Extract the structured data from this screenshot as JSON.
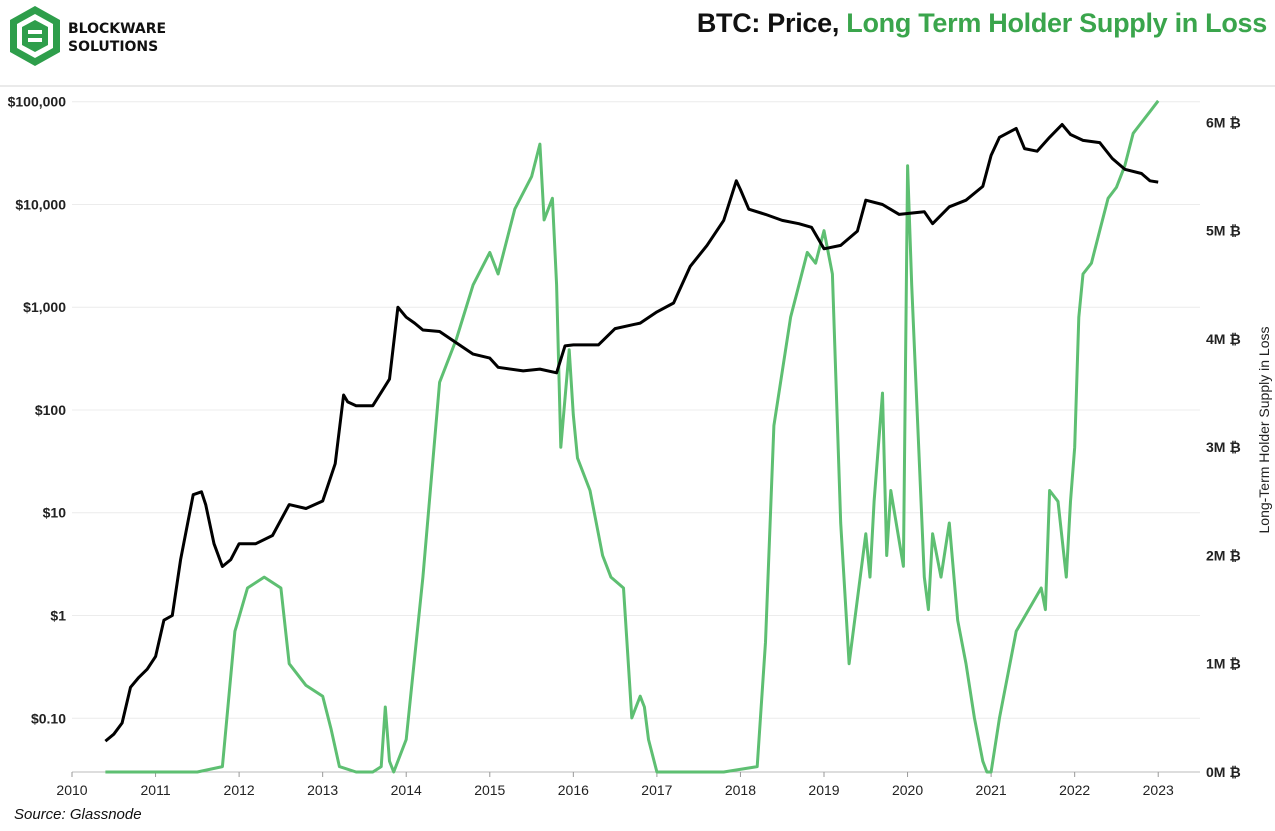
{
  "brand": {
    "line1": "BLOCKWARE",
    "line2": "SOLUTIONS",
    "color": "#2e9e4b"
  },
  "title": {
    "part1": "BTC: Price, ",
    "part2": "Long Term Holder Supply in Loss"
  },
  "source": "Source: Glassnode",
  "chart_data": {
    "type": "line",
    "x_axis": {
      "ticks": [
        "2010",
        "2011",
        "2012",
        "2013",
        "2014",
        "2015",
        "2016",
        "2017",
        "2018",
        "2019",
        "2020",
        "2021",
        "2022",
        "2023"
      ],
      "range": [
        2010.0,
        2023.5
      ]
    },
    "y_left": {
      "scale": "log",
      "range": [
        0.03,
        130000
      ],
      "ticks": [
        {
          "value": 0.1,
          "label": "$0.10"
        },
        {
          "value": 1,
          "label": "$1"
        },
        {
          "value": 10,
          "label": "$10"
        },
        {
          "value": 100,
          "label": "$100"
        },
        {
          "value": 1000,
          "label": "$1,000"
        },
        {
          "value": 10000,
          "label": "$10,000"
        },
        {
          "value": 100000,
          "label": "$100,000"
        }
      ]
    },
    "y_right": {
      "label": "Long-Term Holder Supply in Loss",
      "range": [
        0,
        6.3
      ],
      "unit": "M",
      "ticks": [
        {
          "value": 0,
          "label": "0M ₿"
        },
        {
          "value": 1,
          "label": "1M ₿"
        },
        {
          "value": 2,
          "label": "2M ₿"
        },
        {
          "value": 3,
          "label": "3M ₿"
        },
        {
          "value": 4,
          "label": "4M ₿"
        },
        {
          "value": 5,
          "label": "5M ₿"
        },
        {
          "value": 6,
          "label": "6M ₿"
        }
      ]
    },
    "series": [
      {
        "name": "Price",
        "axis": "left",
        "color": "#000000",
        "x": [
          2010.4,
          2010.5,
          2010.6,
          2010.7,
          2010.8,
          2010.9,
          2011.0,
          2011.1,
          2011.2,
          2011.3,
          2011.45,
          2011.55,
          2011.6,
          2011.7,
          2011.8,
          2011.9,
          2012.0,
          2012.2,
          2012.4,
          2012.6,
          2012.8,
          2013.0,
          2013.15,
          2013.25,
          2013.3,
          2013.4,
          2013.6,
          2013.8,
          2013.9,
          2014.0,
          2014.1,
          2014.2,
          2014.4,
          2014.6,
          2014.8,
          2015.0,
          2015.1,
          2015.4,
          2015.6,
          2015.8,
          2015.9,
          2016.0,
          2016.3,
          2016.5,
          2016.8,
          2017.0,
          2017.2,
          2017.4,
          2017.6,
          2017.8,
          2017.95,
          2018.0,
          2018.1,
          2018.3,
          2018.5,
          2018.7,
          2018.85,
          2019.0,
          2019.2,
          2019.4,
          2019.5,
          2019.7,
          2019.9,
          2020.2,
          2020.3,
          2020.5,
          2020.7,
          2020.9,
          2021.0,
          2021.1,
          2021.3,
          2021.4,
          2021.55,
          2021.7,
          2021.85,
          2021.95,
          2022.1,
          2022.3,
          2022.45,
          2022.6,
          2022.8,
          2022.9,
          2023.0
        ],
        "y": [
          0.06,
          0.07,
          0.09,
          0.2,
          0.25,
          0.3,
          0.4,
          0.9,
          1,
          3.5,
          15,
          16,
          12,
          5,
          3,
          3.5,
          5,
          5,
          6,
          12,
          11,
          13,
          30,
          140,
          120,
          110,
          110,
          200,
          1000,
          800,
          700,
          600,
          580,
          450,
          350,
          320,
          260,
          240,
          250,
          230,
          420,
          430,
          430,
          620,
          700,
          900,
          1100,
          2500,
          4000,
          7000,
          17000,
          14000,
          9000,
          8000,
          7000,
          6500,
          6000,
          3700,
          4000,
          5500,
          11000,
          10000,
          8000,
          8500,
          6500,
          9500,
          11000,
          15000,
          30000,
          45000,
          55000,
          35000,
          33000,
          45000,
          60000,
          48000,
          42000,
          40000,
          28000,
          22000,
          20000,
          17000,
          16500
        ]
      },
      {
        "name": "Long Term Holder Supply in Loss",
        "axis": "right",
        "color": "#5ebf72",
        "x": [
          2010.4,
          2011.5,
          2011.8,
          2011.95,
          2012.1,
          2012.3,
          2012.5,
          2012.6,
          2012.8,
          2013.0,
          2013.1,
          2013.2,
          2013.4,
          2013.6,
          2013.7,
          2013.75,
          2013.8,
          2013.85,
          2014.0,
          2014.2,
          2014.4,
          2014.6,
          2014.8,
          2015.0,
          2015.1,
          2015.3,
          2015.5,
          2015.6,
          2015.65,
          2015.75,
          2015.8,
          2015.85,
          2015.95,
          2016.0,
          2016.05,
          2016.2,
          2016.35,
          2016.45,
          2016.6,
          2016.7,
          2016.8,
          2016.85,
          2016.9,
          2017.0,
          2017.2,
          2017.8,
          2018.2,
          2018.3,
          2018.4,
          2018.6,
          2018.8,
          2018.9,
          2019.0,
          2019.1,
          2019.2,
          2019.3,
          2019.5,
          2019.55,
          2019.6,
          2019.7,
          2019.75,
          2019.8,
          2019.95,
          2020.0,
          2020.05,
          2020.2,
          2020.25,
          2020.3,
          2020.4,
          2020.5,
          2020.6,
          2020.7,
          2020.8,
          2020.9,
          2020.95,
          2021.0,
          2021.1,
          2021.3,
          2021.6,
          2021.65,
          2021.7,
          2021.8,
          2021.9,
          2021.95,
          2022.0,
          2022.05,
          2022.1,
          2022.2,
          2022.3,
          2022.4,
          2022.5,
          2022.6,
          2022.7,
          2022.8,
          2022.9,
          2023.0
        ],
        "y": [
          0,
          0,
          0.05,
          1.3,
          1.7,
          1.8,
          1.7,
          1.0,
          0.8,
          0.7,
          0.4,
          0.05,
          0,
          0,
          0.05,
          0.6,
          0.1,
          0,
          0.3,
          1.8,
          3.6,
          4.0,
          4.5,
          4.8,
          4.6,
          5.2,
          5.5,
          5.8,
          5.1,
          5.3,
          4.5,
          3.0,
          3.9,
          3.3,
          2.9,
          2.6,
          2.0,
          1.8,
          1.7,
          0.5,
          0.7,
          0.6,
          0.3,
          0,
          0,
          0,
          0.05,
          1.2,
          3.2,
          4.2,
          4.8,
          4.7,
          5.0,
          4.6,
          2.3,
          1.0,
          2.2,
          1.8,
          2.5,
          3.5,
          2.0,
          2.6,
          1.9,
          5.6,
          4.5,
          1.8,
          1.5,
          2.2,
          1.8,
          2.3,
          1.4,
          1.0,
          0.5,
          0.1,
          0,
          0,
          0.5,
          1.3,
          1.7,
          1.5,
          2.6,
          2.5,
          1.8,
          2.5,
          3.0,
          4.2,
          4.6,
          4.7,
          5.0,
          5.3,
          5.4,
          5.6,
          5.9,
          6.0,
          6.1,
          6.2
        ]
      }
    ]
  }
}
